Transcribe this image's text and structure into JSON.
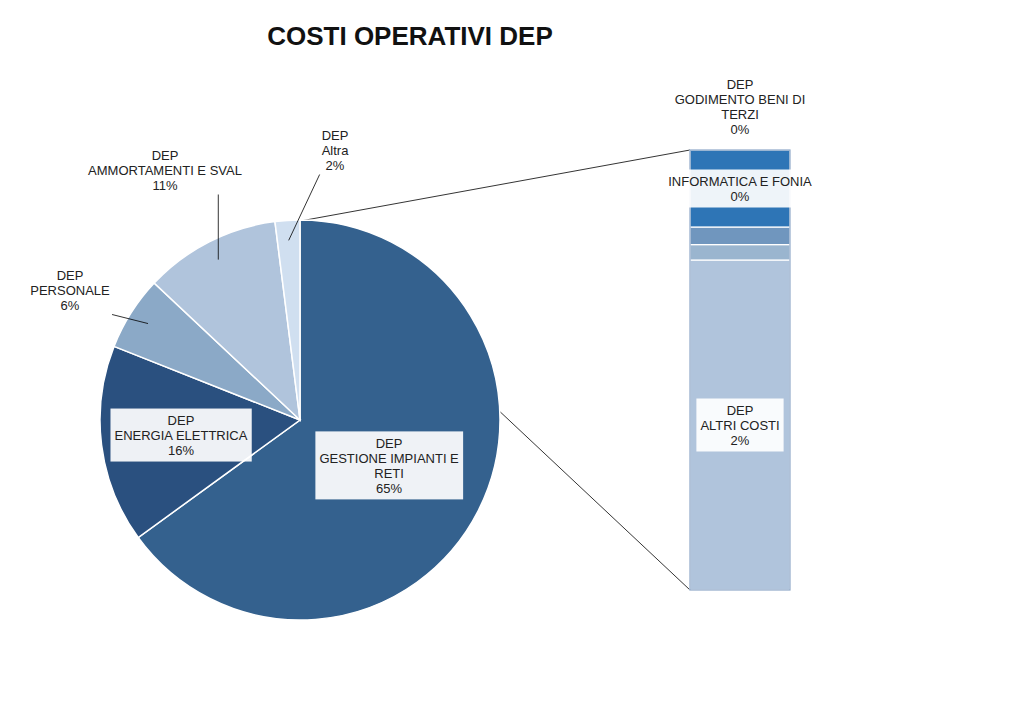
{
  "chart_data": [
    {
      "type": "pie",
      "title": "COSTI OPERATIVI DEP",
      "categories": [
        "DEP\nGESTIONE IMPIANTI E\nRETI",
        "DEP\nENERGIA ELETTRICA",
        "DEP\nPERSONALE",
        "DEP\nAMMORTAMENTI E SVAL",
        "DEP\nAltra"
      ],
      "values": [
        65,
        16,
        6,
        11,
        2
      ],
      "value_labels": [
        "65%",
        "16%",
        "6%",
        "11%",
        "2%"
      ],
      "colors": [
        "#34618E",
        "#2A507F",
        "#8BA9C7",
        "#B0C4DC",
        "#D0DFF0"
      ],
      "data_labels": true
    },
    {
      "type": "bar",
      "stacked": true,
      "categories": [
        "INFORMATICA E FONIA",
        null,
        null,
        "DEP\nALTRI COSTI"
      ],
      "values": [
        0.35,
        0.08,
        0.07,
        1.5
      ],
      "value_labels": [
        "0%",
        null,
        null,
        "2%"
      ],
      "colors": [
        "#2E75B6",
        "#7096BE",
        "#9AB5CF",
        "#B0C4DC"
      ],
      "ylim": [
        0,
        2
      ],
      "tick_labels": false,
      "data_labels": true,
      "annotations": [
        "DEP\nGODIMENTO BENI DI\nTERZI\n0%"
      ]
    }
  ]
}
